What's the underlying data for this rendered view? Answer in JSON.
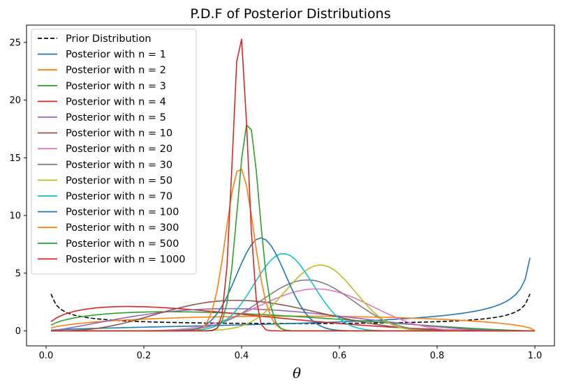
{
  "chart_data": {
    "type": "line",
    "title": "P.D.F of Posterior Distributions",
    "xlabel": "θ",
    "ylabel": "",
    "xlim": [
      -0.04,
      1.04
    ],
    "ylim": [
      -1.3,
      26.5
    ],
    "xticks": [
      0.0,
      0.2,
      0.4,
      0.6,
      0.8,
      1.0
    ],
    "xtick_labels": [
      "0.0",
      "0.2",
      "0.4",
      "0.6",
      "0.8",
      "1.0"
    ],
    "yticks": [
      0,
      5,
      10,
      15,
      20,
      25
    ],
    "ytick_labels": [
      "0",
      "5",
      "10",
      "15",
      "20",
      "25"
    ],
    "legend_position": "top-left",
    "series": [
      {
        "name": "Prior Distribution",
        "color": "#000000",
        "dashed": true,
        "kind": "beta",
        "a": 0.5,
        "b": 0.5,
        "x_start": 0.01,
        "x_end": 0.99
      },
      {
        "name": "Posterior with n = 1",
        "color": "#1f77b4",
        "kind": "beta",
        "a": 1.5,
        "b": 0.5,
        "x_start": 0.01,
        "x_end": 0.99
      },
      {
        "name": "Posterior with n = 2",
        "color": "#ff7f0e",
        "kind": "beta",
        "a": 1.5,
        "b": 1.5,
        "x_start": 0.01,
        "x_end": 1.0
      },
      {
        "name": "Posterior with n = 3",
        "color": "#2ca02c",
        "kind": "beta",
        "a": 1.5,
        "b": 2.5,
        "x_start": 0.01,
        "x_end": 1.0
      },
      {
        "name": "Posterior with n = 4",
        "color": "#d62728",
        "kind": "beta",
        "a": 1.5,
        "b": 3.5,
        "x_start": 0.01,
        "x_end": 1.0
      },
      {
        "name": "Posterior with n = 5",
        "color": "#9467bd",
        "kind": "beta",
        "a": 2.5,
        "b": 3.5,
        "x_start": 0.01,
        "x_end": 1.0
      },
      {
        "name": "Posterior with n = 10",
        "color": "#8c564b",
        "kind": "beta",
        "a": 4.5,
        "b": 6.5,
        "x_start": 0.01,
        "x_end": 1.0
      },
      {
        "name": "Posterior with n = 20",
        "color": "#e377c2",
        "kind": "beta",
        "a": 11.5,
        "b": 9.5,
        "x_start": 0.01,
        "x_end": 1.0
      },
      {
        "name": "Posterior with n = 30",
        "color": "#7f7f7f",
        "kind": "beta",
        "a": 16.5,
        "b": 14.5,
        "x_start": 0.01,
        "x_end": 1.0
      },
      {
        "name": "Posterior with n = 50",
        "color": "#bcbd22",
        "kind": "beta",
        "a": 28.5,
        "b": 22.5,
        "x_start": 0.01,
        "x_end": 1.0
      },
      {
        "name": "Posterior with n = 70",
        "color": "#17becf",
        "kind": "beta",
        "a": 34.5,
        "b": 36.5,
        "x_start": 0.01,
        "x_end": 1.0
      },
      {
        "name": "Posterior with n = 100",
        "color": "#1f77b4",
        "kind": "beta",
        "a": 44.5,
        "b": 56.5,
        "x_start": 0.01,
        "x_end": 1.0
      },
      {
        "name": "Posterior with n = 300",
        "color": "#ff7f0e",
        "kind": "beta",
        "a": 119.5,
        "b": 181.5,
        "x_start": 0.01,
        "x_end": 1.0
      },
      {
        "name": "Posterior with n = 500",
        "color": "#2ca02c",
        "kind": "beta",
        "a": 207.5,
        "b": 293.5,
        "x_start": 0.01,
        "x_end": 1.0
      },
      {
        "name": "Posterior with n = 1000",
        "color": "#d62728",
        "kind": "beta",
        "a": 397.5,
        "b": 603.5,
        "x_start": 0.01,
        "x_end": 1.0
      }
    ]
  }
}
